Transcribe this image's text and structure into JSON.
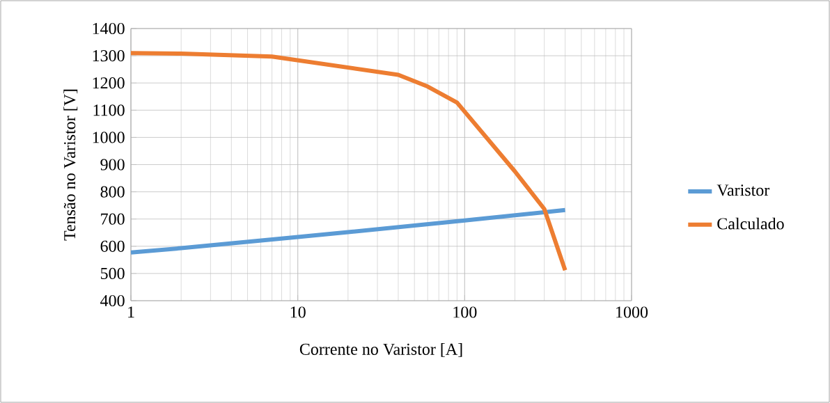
{
  "chart_data": {
    "type": "line",
    "xlabel": "Corrente no Varistor [A]",
    "ylabel": "Tensão no Varistor [V]",
    "log": "x",
    "xlim": [
      1,
      1000
    ],
    "xticks": [
      1,
      10,
      100,
      1000
    ],
    "ylim": [
      400,
      1400
    ],
    "yticks": [
      400,
      500,
      600,
      700,
      800,
      900,
      1000,
      1100,
      1200,
      1300,
      1400
    ],
    "grid": true,
    "legend": "right",
    "marker": "none",
    "line_style": "solid",
    "series": [
      {
        "name": "Varistor",
        "color": "#5b9bd5",
        "x": [
          1,
          2,
          10,
          20,
          100,
          400
        ],
        "values": [
          577,
          593,
          634,
          652,
          695,
          733
        ]
      },
      {
        "name": "Calculado",
        "color": "#ed7d31",
        "x": [
          1,
          2,
          7,
          40,
          60,
          90,
          200,
          300,
          400
        ],
        "values": [
          1310,
          1308,
          1297,
          1230,
          1187,
          1128,
          875,
          737,
          512
        ]
      }
    ]
  }
}
